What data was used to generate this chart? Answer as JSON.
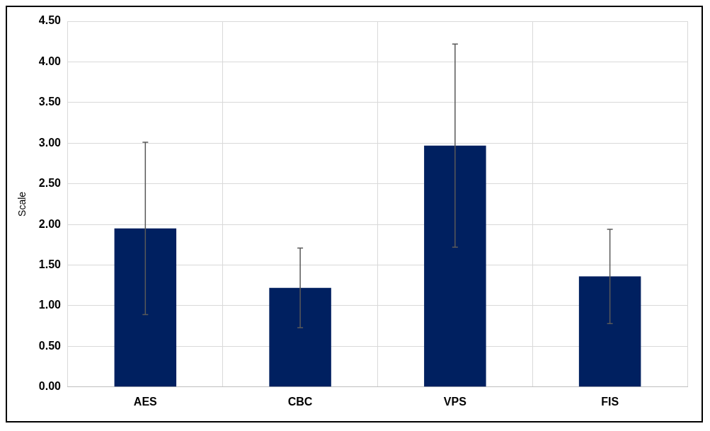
{
  "chart_data": {
    "type": "bar",
    "ylabel": "Scale",
    "categories": [
      "AES",
      "CBC",
      "VPS",
      "FIS"
    ],
    "values": [
      1.95,
      1.22,
      2.97,
      1.36
    ],
    "errors": [
      1.06,
      0.49,
      1.25,
      0.58
    ],
    "color": "#002060",
    "ylim": [
      0,
      4.5
    ],
    "yticks": [
      {
        "value": 0,
        "label": "0.00"
      },
      {
        "value": 0.5,
        "label": "0.50"
      },
      {
        "value": 1,
        "label": "1.00"
      },
      {
        "value": 1.5,
        "label": "1.50"
      },
      {
        "value": 2,
        "label": "2.00"
      },
      {
        "value": 2.5,
        "label": "2.50"
      },
      {
        "value": 3,
        "label": "3.00"
      },
      {
        "value": 3.5,
        "label": "3.50"
      },
      {
        "value": 4,
        "label": "4.00"
      },
      {
        "value": 4.5,
        "label": "4.50"
      }
    ],
    "grid": true
  }
}
